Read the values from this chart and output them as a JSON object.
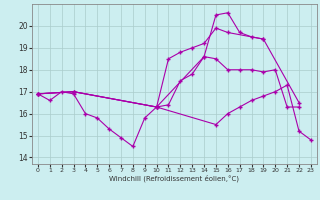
{
  "background_color": "#cceef0",
  "line_color": "#aa00aa",
  "grid_color": "#aacccc",
  "xlabel": "Windchill (Refroidissement éolien,°C)",
  "yticks": [
    14,
    15,
    16,
    17,
    18,
    19,
    20
  ],
  "xticks": [
    0,
    1,
    2,
    3,
    4,
    5,
    6,
    7,
    8,
    9,
    10,
    11,
    12,
    13,
    14,
    15,
    16,
    17,
    18,
    19,
    20,
    21,
    22,
    23
  ],
  "xlim": [
    -0.5,
    23.5
  ],
  "ylim": [
    13.7,
    21.0
  ],
  "series1_x": [
    0,
    1,
    2,
    3,
    4,
    5,
    6,
    7,
    8,
    9,
    10,
    11,
    12,
    13,
    14,
    15,
    16,
    17,
    18,
    19,
    20,
    21,
    22
  ],
  "series1_y": [
    16.9,
    16.6,
    17.0,
    16.9,
    16.0,
    15.8,
    15.3,
    14.9,
    14.5,
    15.8,
    16.3,
    16.4,
    17.5,
    17.8,
    18.6,
    18.5,
    18.0,
    18.0,
    18.0,
    17.9,
    18.0,
    16.3,
    16.3
  ],
  "series2_x": [
    0,
    3,
    10,
    14,
    15,
    16,
    17,
    18,
    19,
    22
  ],
  "series2_y": [
    16.9,
    17.0,
    16.3,
    18.6,
    20.5,
    20.6,
    19.7,
    19.5,
    19.4,
    16.5
  ],
  "series3_x": [
    0,
    3,
    10,
    11,
    12,
    13,
    14,
    15,
    16,
    19
  ],
  "series3_y": [
    16.9,
    17.0,
    16.3,
    18.5,
    18.8,
    19.0,
    19.2,
    19.9,
    19.7,
    19.4
  ],
  "series4_x": [
    0,
    3,
    10,
    15,
    16,
    17,
    18,
    19,
    20,
    21,
    22,
    23
  ],
  "series4_y": [
    16.9,
    17.0,
    16.3,
    15.5,
    16.0,
    16.3,
    16.6,
    16.8,
    17.0,
    17.3,
    15.2,
    14.8
  ]
}
